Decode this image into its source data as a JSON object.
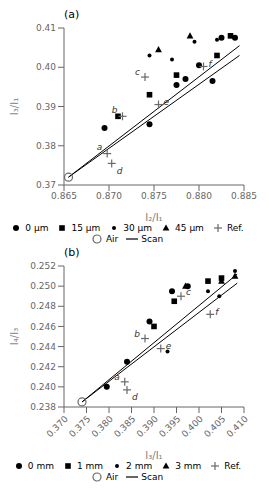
{
  "chart_data": [
    {
      "type": "scatter",
      "title": "(a)",
      "x_label": "I₂/I₁",
      "y_label": "I₃/I₁",
      "xlim": [
        0.865,
        0.885
      ],
      "ylim": [
        0.37,
        0.41
      ],
      "xticks": [
        0.865,
        {
          "value": 0.87,
          "label": "0.870"
        },
        0.875,
        {
          "value": 0.88,
          "label": "0.880"
        },
        0.885
      ],
      "yticks": [
        0.37,
        0.38,
        0.39,
        {
          "value": 0.4,
          "label": "0.40"
        },
        0.41
      ],
      "grid": false,
      "legend": "bottom",
      "series": [
        {
          "name": "0 μm",
          "marker": "circle",
          "color": "black",
          "x": [
            0.8695,
            0.8745,
            0.8775,
            0.8785,
            0.88,
            0.8815,
            0.8825,
            0.884
          ],
          "values": [
            0.3845,
            0.3855,
            0.3955,
            0.397,
            0.4005,
            0.3965,
            0.4075,
            0.4075
          ]
        },
        {
          "name": "15 μm",
          "marker": "square",
          "color": "black",
          "x": [
            0.871,
            0.8745,
            0.8775,
            0.882,
            0.8835
          ],
          "values": [
            0.3875,
            0.393,
            0.398,
            0.403,
            0.408
          ]
        },
        {
          "name": "30 μm",
          "marker": "dot",
          "color": "black",
          "x": [
            0.8745,
            0.877,
            0.8795,
            0.882
          ],
          "values": [
            0.403,
            0.402,
            0.4065,
            0.407
          ]
        },
        {
          "name": "45 μm",
          "marker": "triangle",
          "color": "black",
          "x": [
            0.8755,
            0.879
          ],
          "values": [
            0.4045,
            0.408
          ]
        },
        {
          "name": "Ref.",
          "marker": "plus",
          "color": "dimgray",
          "x": [
            0.8698,
            0.8715,
            0.874,
            0.8703,
            0.8755,
            0.8805
          ],
          "values": [
            0.378,
            0.3875,
            0.3975,
            0.3755,
            0.3905,
            0.4002
          ],
          "labels": [
            "a",
            "b",
            "c",
            "d",
            "e",
            "f"
          ]
        },
        {
          "name": "Air",
          "marker": "open_circle",
          "color": "dimgray",
          "x": [
            0.8655
          ],
          "values": [
            0.372
          ]
        },
        {
          "name": "Scan",
          "type": "line",
          "color": "black",
          "segments": [
            {
              "x": [
                0.8655,
                0.8845
              ],
              "values": [
                0.372,
                0.403
              ]
            },
            {
              "x": [
                0.8655,
                0.8845
              ],
              "values": [
                0.372,
                0.4055
              ]
            }
          ]
        }
      ]
    },
    {
      "type": "scatter",
      "title": "(b)",
      "x_label": "I₃/I₁",
      "y_label": "I₄/I₃",
      "xlim": [
        0.37,
        0.41
      ],
      "ylim": [
        0.238,
        0.252
      ],
      "xticks": [
        {
          "value": 0.37,
          "label": "0.370"
        },
        0.375,
        {
          "value": 0.38,
          "label": "0.380"
        },
        0.385,
        {
          "value": 0.39,
          "label": "0.390"
        },
        0.395,
        {
          "value": 0.4,
          "label": "0.400"
        },
        0.405,
        {
          "value": 0.41,
          "label": "0.410"
        }
      ],
      "yticks": [
        0.238,
        {
          "value": 0.24,
          "label": "0.240"
        },
        0.242,
        0.244,
        0.246,
        0.248,
        {
          "value": 0.25,
          "label": "0.250"
        },
        0.252
      ],
      "grid": false,
      "legend": "bottom",
      "series": [
        {
          "name": "0 mm",
          "marker": "circle",
          "color": "black",
          "x": [
            0.3795,
            0.384,
            0.389,
            0.394,
            0.3975
          ],
          "values": [
            0.24,
            0.2425,
            0.2465,
            0.2495,
            0.25
          ]
        },
        {
          "name": "1 mm",
          "marker": "square",
          "color": "black",
          "x": [
            0.39,
            0.3945,
            0.402,
            0.405
          ],
          "values": [
            0.246,
            0.2485,
            0.2505,
            0.2508
          ]
        },
        {
          "name": "2 mm",
          "marker": "dot",
          "color": "black",
          "x": [
            0.393,
            0.402,
            0.4045,
            0.408
          ],
          "values": [
            0.2435,
            0.2495,
            0.249,
            0.2515
          ]
        },
        {
          "name": "3 mm",
          "marker": "triangle",
          "color": "black",
          "x": [
            0.397,
            0.405,
            0.408
          ],
          "values": [
            0.25,
            0.2505,
            0.251
          ]
        },
        {
          "name": "Ref.",
          "marker": "plus",
          "color": "dimgray",
          "x": [
            0.3835,
            0.388,
            0.396,
            0.384,
            0.3915,
            0.4025
          ],
          "values": [
            0.2405,
            0.2448,
            0.249,
            0.2397,
            0.2438,
            0.2472
          ],
          "labels": [
            "a",
            "b",
            "c",
            "d",
            "e",
            "f"
          ]
        },
        {
          "name": "Air",
          "marker": "open_circle",
          "color": "dimgray",
          "x": [
            0.374
          ],
          "values": [
            0.2385
          ]
        },
        {
          "name": "Scan",
          "type": "line",
          "color": "black",
          "segments": [
            {
              "x": [
                0.374,
                0.4085
              ],
              "values": [
                0.2385,
                0.2512
              ]
            },
            {
              "x": [
                0.374,
                0.4085
              ],
              "values": [
                0.2385,
                0.2503
              ]
            }
          ]
        }
      ]
    }
  ]
}
